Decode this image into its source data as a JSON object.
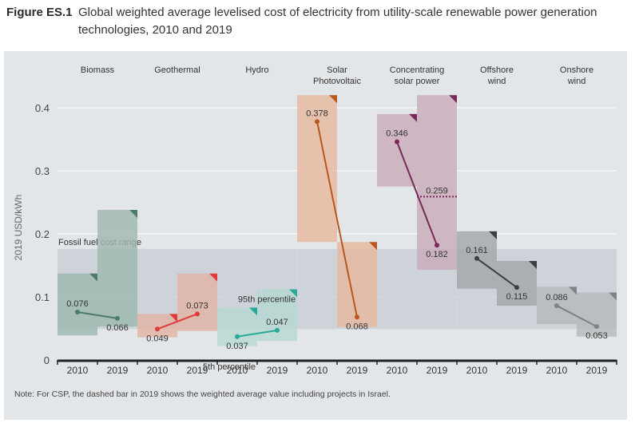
{
  "figure_label": "Figure ES.1",
  "title": "Global weighted average levelised cost of electricity from utility-scale renewable power generation technologies, 2010 and 2019",
  "note": "Note: For CSP, the dashed bar in 2019 shows the weighted average value including projects in Israel.",
  "chart_data": {
    "type": "range-bar-with-lines",
    "title": "Global weighted average levelised cost of electricity from utility-scale renewable power generation technologies, 2010 and 2019",
    "ylabel": "2019 USD/kWh",
    "ylim": [
      0,
      0.42
    ],
    "yticks": [
      0,
      0.1,
      0.2,
      0.3,
      0.4
    ],
    "ytick_labels": [
      "0",
      "0.1",
      "0.2",
      "0.3",
      "0.4"
    ],
    "grid": true,
    "fossil_range": {
      "label": "Fossil fuel cost range",
      "low": 0.049,
      "high": 0.176
    },
    "annotations": {
      "p95": "95th percentile",
      "p5": "5th percentile"
    },
    "years": [
      "2010",
      "2019"
    ],
    "technologies": [
      {
        "name": "Biomass",
        "color": "#4e7a6e",
        "fill": "#9fb8b0",
        "values": [
          0.076,
          0.066
        ],
        "labels": [
          "0.076",
          "0.066"
        ],
        "p5": [
          0.039,
          0.053
        ],
        "p95": [
          0.137,
          0.238
        ]
      },
      {
        "name": "Geothermal",
        "color": "#e03a3a",
        "fill": "#e2b3a3",
        "values": [
          0.049,
          0.073
        ],
        "labels": [
          "0.049",
          "0.073"
        ],
        "p5": [
          0.036,
          0.046
        ],
        "p95": [
          0.073,
          0.137
        ]
      },
      {
        "name": "Hydro",
        "color": "#2aa899",
        "fill": "#b6d8d2",
        "values": [
          0.037,
          0.047
        ],
        "labels": [
          "0.037",
          "0.047"
        ],
        "p5": [
          0.022,
          0.03
        ],
        "p95": [
          0.083,
          0.112
        ]
      },
      {
        "name": "Solar Photovoltaic",
        "color": "#b9571d",
        "fill": "#e6b9a0",
        "values": [
          0.378,
          0.068
        ],
        "labels": [
          "0.378",
          "0.068"
        ],
        "p5": [
          0.187,
          0.052
        ],
        "p95": [
          0.42,
          0.187
        ]
      },
      {
        "name": "Concentrating solar power",
        "color": "#7a2a5a",
        "fill": "#c9abb9",
        "values": [
          0.346,
          0.182
        ],
        "labels": [
          "0.346",
          "0.182"
        ],
        "p5": [
          0.275,
          0.143
        ],
        "p95": [
          0.39,
          0.42
        ],
        "dashed_2019": {
          "value": 0.259,
          "label": "0.259"
        }
      },
      {
        "name": "Offshore wind",
        "color": "#3a3f42",
        "fill": "#a2a7aa",
        "values": [
          0.161,
          0.115
        ],
        "labels": [
          "0.161",
          "0.115"
        ],
        "p5": [
          0.113,
          0.086
        ],
        "p95": [
          0.204,
          0.157
        ]
      },
      {
        "name": "Onshore wind",
        "color": "#7d8285",
        "fill": "#b6babc",
        "values": [
          0.086,
          0.053
        ],
        "labels": [
          "0.086",
          "0.053"
        ],
        "p5": [
          0.057,
          0.037
        ],
        "p95": [
          0.116,
          0.107
        ]
      }
    ],
    "category_labels": [
      [
        "Biomass"
      ],
      [
        "Geothermal"
      ],
      [
        "Hydro"
      ],
      [
        "Solar",
        "Photovoltaic"
      ],
      [
        "Concentrating",
        "solar power"
      ],
      [
        "Offshore",
        "wind"
      ],
      [
        "Onshore",
        "wind"
      ]
    ]
  }
}
